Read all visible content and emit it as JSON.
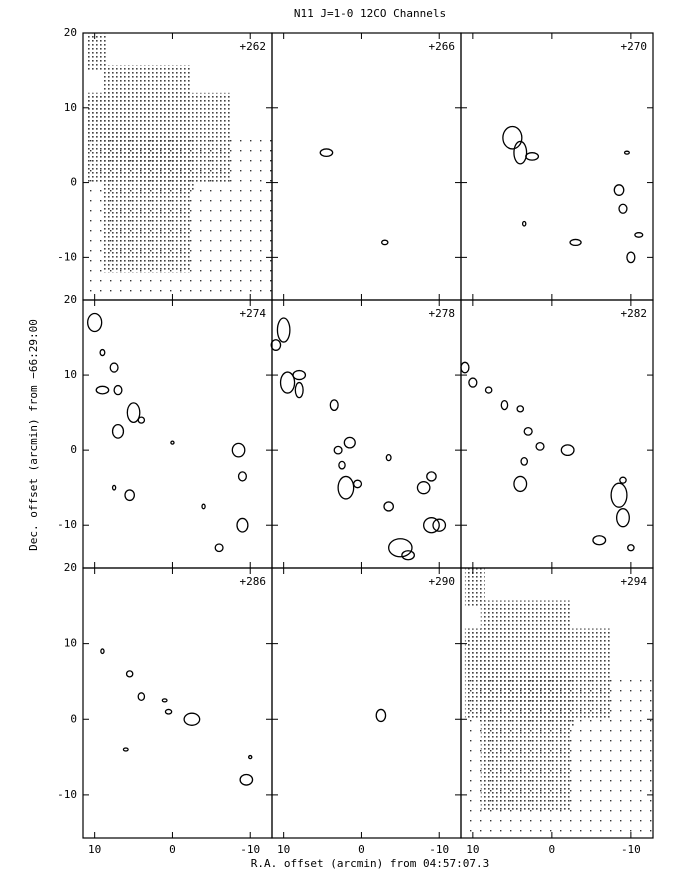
{
  "chart_data": {
    "type": "contour",
    "title": "N11 J=1-0 12CO Channels",
    "x_label": "R.A. offset (arcmin) from 04:57:07.3",
    "y_label": "Dec. offset (arcmin) from −66:29:00",
    "panels": [
      "+262",
      "+266",
      "+270",
      "+274",
      "+278",
      "+282",
      "+286",
      "+290",
      "+294"
    ],
    "xlim": [
      11.5,
      -12.8
    ],
    "ylim": [
      -15.7,
      20
    ],
    "xticks": [
      10,
      0,
      -10
    ],
    "yticks": [
      20,
      10,
      0,
      -10
    ]
  }
}
